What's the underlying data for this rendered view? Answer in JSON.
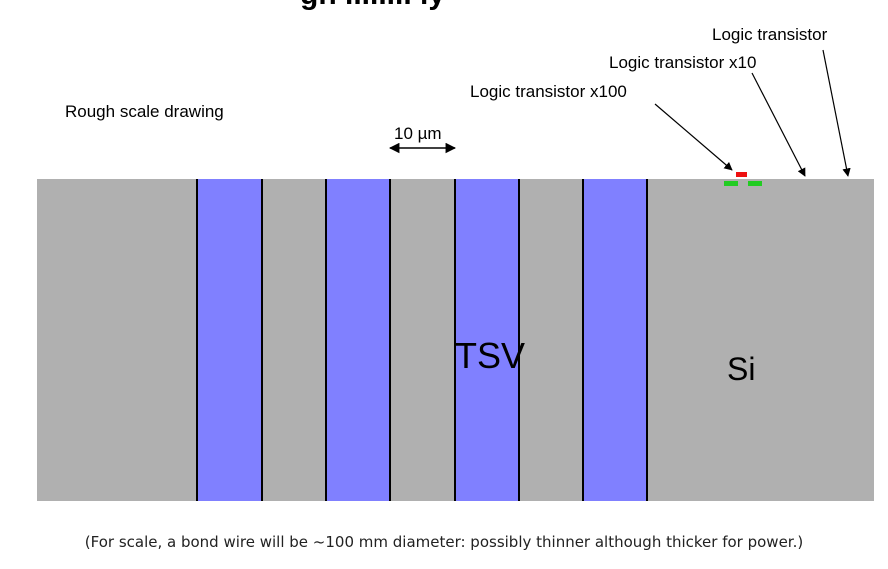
{
  "title_fragment": "gn   ........   ly   ",
  "scale_note": "Rough scale drawing",
  "scale_bar_label": "10 µm",
  "substrate_label": "Si",
  "via_label": "TSV",
  "callouts": [
    {
      "label": "Logic transistor"
    },
    {
      "label": "Logic transistor x10"
    },
    {
      "label": "Logic transistor x100"
    }
  ],
  "caption": "(For scale, a bond wire will be ~100 mm diameter: possibly thinner although thicker for power.)",
  "colors": {
    "substrate": "#b0b0b0",
    "via": "#8080ff",
    "via_label": "#22dd22",
    "transistor_gate": "#ee1111",
    "transistor_diffusion": "#22cc22"
  }
}
